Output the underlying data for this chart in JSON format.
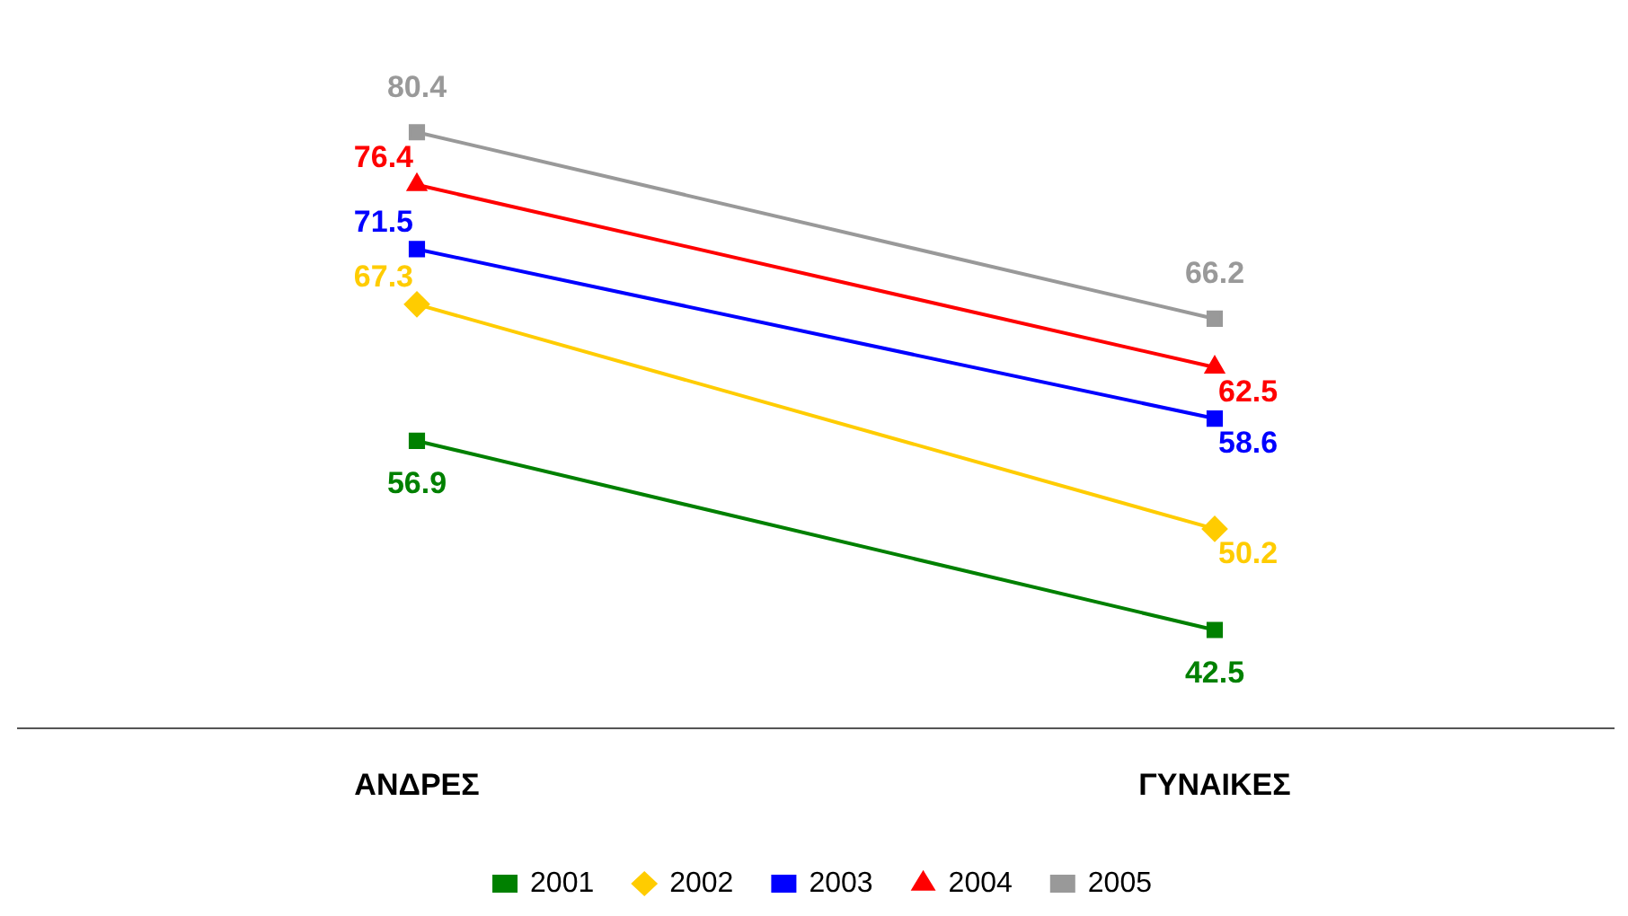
{
  "chart_data": {
    "type": "line",
    "categories": [
      "ΑΝΔΡΕΣ",
      "ΓΥΝΑΙΚΕΣ"
    ],
    "data_labels": true,
    "legend": "bottom",
    "grid": false,
    "series": [
      {
        "name": "2001",
        "color": "#008000",
        "marker": "square",
        "values": [
          56.9,
          42.5
        ]
      },
      {
        "name": "2002",
        "color": "#ffcc00",
        "marker": "diamond",
        "values": [
          67.3,
          50.2
        ]
      },
      {
        "name": "2003",
        "color": "#0000ff",
        "marker": "square",
        "values": [
          71.5,
          58.6
        ]
      },
      {
        "name": "2004",
        "color": "#ff0000",
        "marker": "triangle",
        "values": [
          76.4,
          62.5
        ]
      },
      {
        "name": "2005",
        "color": "#999999",
        "marker": "square",
        "values": [
          80.4,
          66.2
        ]
      }
    ]
  }
}
